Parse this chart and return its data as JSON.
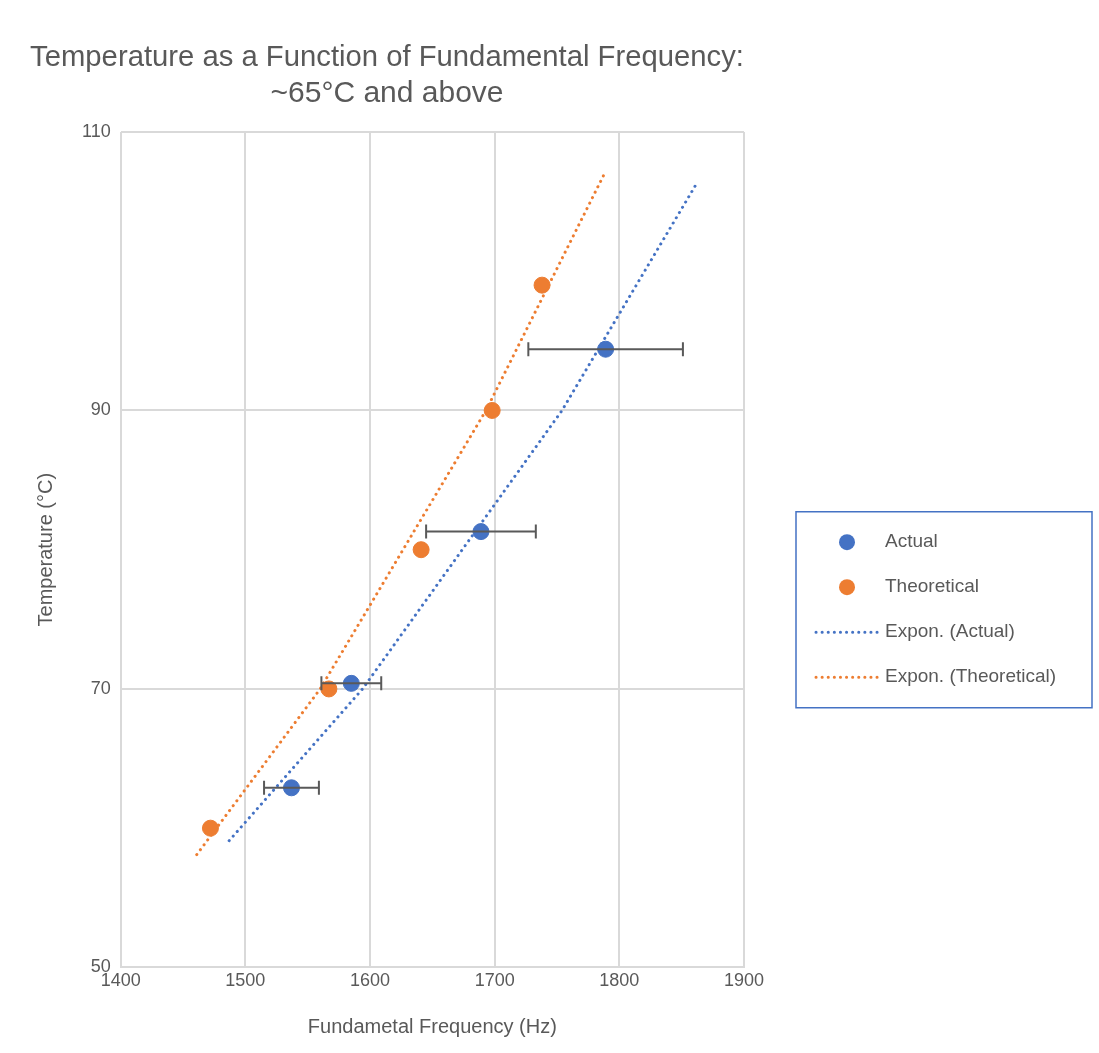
{
  "chart_data": {
    "type": "scatter",
    "title": "Temperature as a Function of Fundamental Frequency: ~65°C and above",
    "xlabel": "Fundametal Frequency (Hz)",
    "ylabel": "Temperature (°C)",
    "xlim": [
      1400,
      1900
    ],
    "xticks": [
      1400,
      1500,
      1600,
      1700,
      1800,
      1900
    ],
    "ylim": [
      50,
      110
    ],
    "yticks": [
      50,
      70,
      90,
      110
    ],
    "grid": true,
    "legend": "right",
    "marker": "circle",
    "series": [
      {
        "name": "Actual",
        "color": "#4472c4",
        "x": [
          1537,
          1585,
          1689,
          1789
        ],
        "values": [
          62.9,
          70.4,
          81.3,
          94.4
        ],
        "xerrors": [
          22,
          24,
          44,
          62
        ]
      },
      {
        "name": "Theoretical",
        "color": "#ed7d31",
        "x": [
          1472,
          1567,
          1641,
          1698,
          1738
        ],
        "values": [
          60,
          70,
          80,
          90,
          99
        ]
      },
      {
        "name": "Expon. (Actual)",
        "type": "line",
        "color": "#4472c4",
        "line_style": "dotted",
        "marker": "none",
        "x": [
          1487,
          1594,
          1754,
          1862
        ],
        "values": [
          59.1,
          70,
          90,
          106.3
        ]
      },
      {
        "name": "Expon. (Theoretical)",
        "type": "line",
        "color": "#ed7d31",
        "line_style": "dotted",
        "marker": "none",
        "x": [
          1461,
          1560,
          1693,
          1788
        ],
        "values": [
          58.1,
          70,
          90,
          107
        ]
      }
    ]
  }
}
